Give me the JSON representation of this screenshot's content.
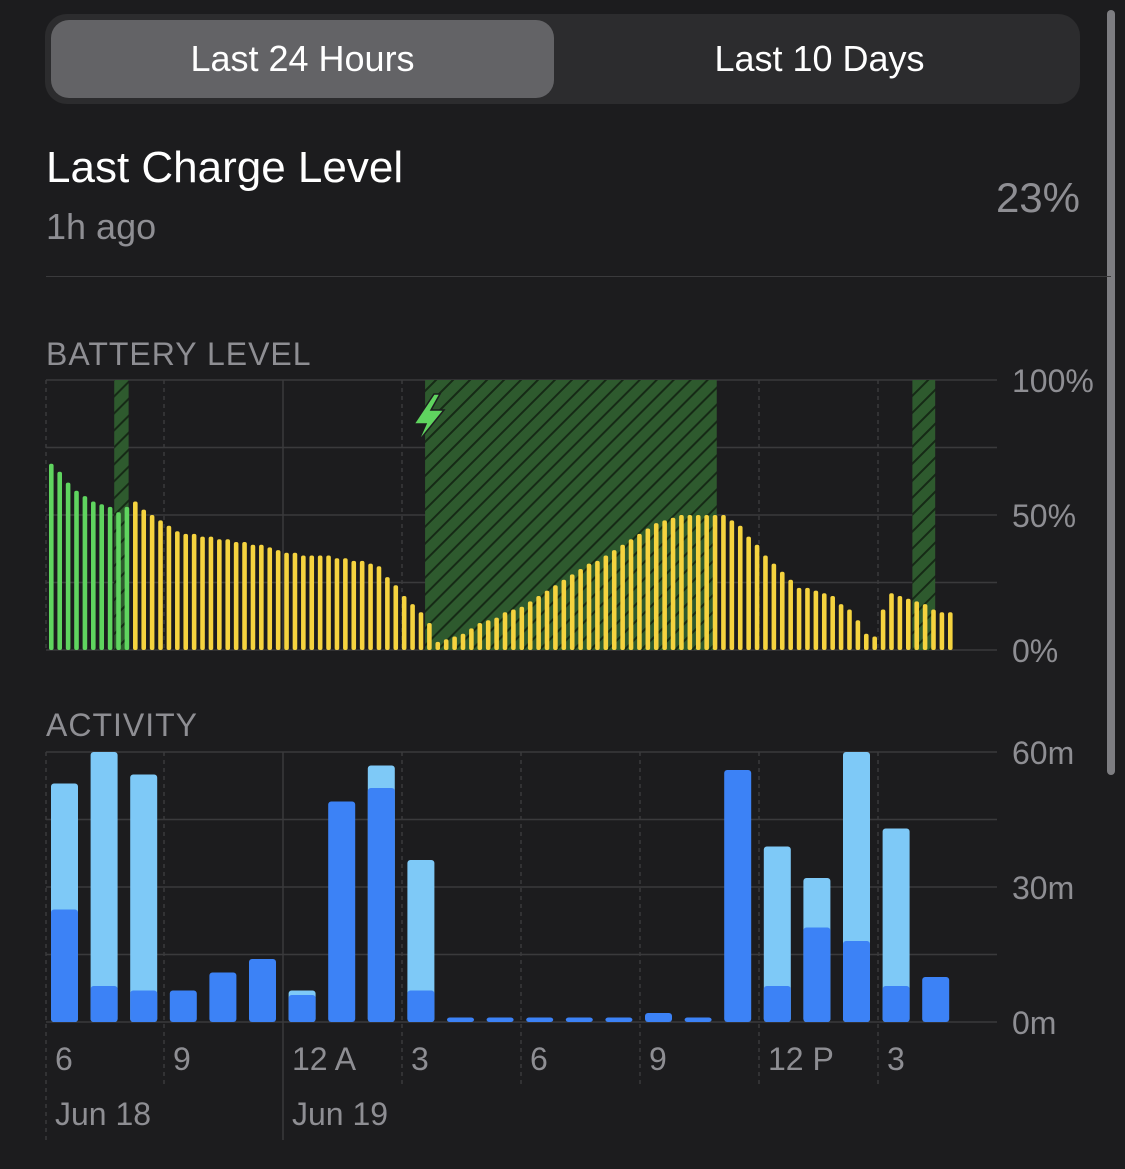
{
  "segmented": {
    "options": [
      "Last 24 Hours",
      "Last 10 Days"
    ],
    "selected": "Last 24 Hours"
  },
  "last_charge": {
    "title": "Last Charge Level",
    "time": "1h ago",
    "value": "23%"
  },
  "battery_section": {
    "label": "BATTERY LEVEL"
  },
  "activity_section": {
    "label": "ACTIVITY"
  },
  "colors": {
    "background": "#1c1c1e",
    "battery_green": "#5fd45f",
    "battery_yellow": "#f5d33f",
    "charging_hatch": "#2e5a2e",
    "screen_on": "#3c82f6",
    "screen_off": "#7ec9f7",
    "grid": "#3a3a3c"
  },
  "chart_data": [
    {
      "type": "bar",
      "name": "battery-level",
      "y_ticks": [
        "100%",
        "50%",
        "0%"
      ],
      "ylim": [
        0,
        100
      ],
      "x_ticks": [
        "6",
        "9",
        "12 A",
        "3",
        "6",
        "9",
        "12 P",
        "3"
      ],
      "date_labels": [
        "Jun 18",
        "Jun 19"
      ],
      "charging_periods": [
        [
          8,
          9
        ],
        [
          45,
          79
        ],
        [
          103,
          105
        ]
      ],
      "low_power_bars": 10,
      "values": [
        69,
        66,
        62,
        59,
        57,
        55,
        54,
        53,
        51,
        53,
        55,
        52,
        50,
        48,
        46,
        44,
        43,
        43,
        42,
        42,
        41,
        41,
        40,
        40,
        39,
        39,
        38,
        37,
        36,
        36,
        35,
        35,
        35,
        35,
        34,
        34,
        33,
        33,
        32,
        31,
        27,
        24,
        20,
        17,
        14,
        10,
        3,
        4,
        5,
        6,
        8,
        10,
        11,
        12,
        14,
        15,
        16,
        18,
        20,
        22,
        24,
        26,
        28,
        30,
        32,
        33,
        35,
        37,
        39,
        41,
        43,
        45,
        47,
        48,
        49,
        50,
        50,
        50,
        50,
        50,
        50,
        48,
        46,
        42,
        39,
        35,
        32,
        29,
        26,
        23,
        23,
        22,
        21,
        20,
        17,
        15,
        11,
        6,
        5,
        15,
        21,
        20,
        19,
        18,
        17,
        15,
        14,
        14
      ]
    },
    {
      "type": "bar",
      "name": "activity",
      "y_ticks": [
        "60m",
        "30m",
        "0m"
      ],
      "ylim": [
        0,
        60
      ],
      "x_ticks": [
        "6",
        "9",
        "12 A",
        "3",
        "6",
        "9",
        "12 P",
        "3"
      ],
      "date_labels": [
        "Jun 18",
        "Jun 19"
      ],
      "series": [
        {
          "name": "Screen On",
          "values": [
            25,
            8,
            7,
            7,
            11,
            14,
            6,
            49,
            52,
            7,
            1,
            1,
            1,
            1,
            1,
            2,
            1,
            56,
            8,
            21,
            18,
            8,
            10
          ]
        },
        {
          "name": "Screen Off",
          "values": [
            28,
            52,
            48,
            0,
            0,
            0,
            1,
            0,
            5,
            29,
            0,
            0,
            0,
            0,
            0,
            0,
            0,
            0,
            31,
            11,
            42,
            35,
            0
          ]
        }
      ]
    }
  ]
}
